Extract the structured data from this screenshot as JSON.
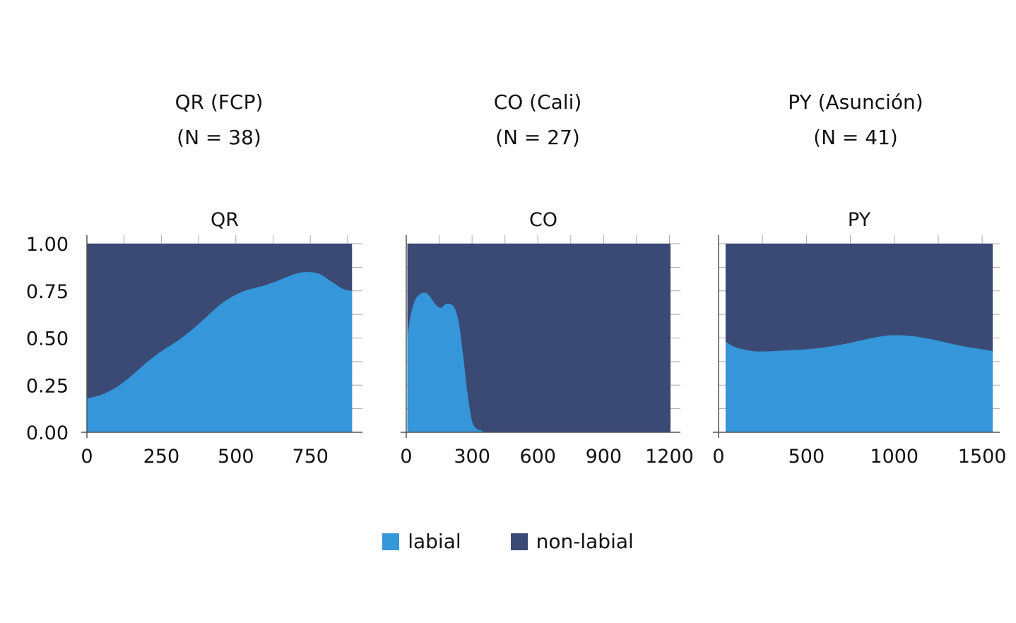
{
  "headers": [
    {
      "title": "QR (FCP)",
      "n": "(N = 38)"
    },
    {
      "title": "CO (Cali)",
      "n": "(N = 27)"
    },
    {
      "title": "PY (Asunción)",
      "n": "(N = 41)"
    }
  ],
  "legend": [
    {
      "label": "labial",
      "color": "#3596d9"
    },
    {
      "label": "non-labial",
      "color": "#3a4a75"
    }
  ],
  "colors": {
    "labial": "#3596d9",
    "non_labial": "#3a4a75",
    "axis": "#555555",
    "grid": "#aaaaaa"
  },
  "chart_data": [
    {
      "type": "area",
      "title": "QR",
      "stacked": "proportion",
      "xlim": [
        0,
        925
      ],
      "ylim": [
        0,
        1
      ],
      "xticks": [
        0,
        250,
        500,
        750
      ],
      "xtick_labels": [
        "0",
        "250",
        "500",
        "750"
      ],
      "yticks": [
        0,
        0.25,
        0.5,
        0.75,
        1
      ],
      "ytick_labels": [
        "0.00",
        "0.25",
        "0.50",
        "0.75",
        "1.00"
      ],
      "x_range": [
        0,
        890
      ],
      "series": [
        {
          "name": "labial",
          "x": [
            0,
            50,
            100,
            150,
            200,
            250,
            300,
            350,
            400,
            450,
            500,
            550,
            600,
            650,
            700,
            740,
            780,
            820,
            860,
            890
          ],
          "values": [
            0.18,
            0.2,
            0.24,
            0.3,
            0.37,
            0.43,
            0.48,
            0.54,
            0.61,
            0.68,
            0.73,
            0.76,
            0.78,
            0.81,
            0.84,
            0.85,
            0.84,
            0.8,
            0.76,
            0.75
          ]
        },
        {
          "name": "non-labial",
          "fill_to": 1
        }
      ]
    },
    {
      "type": "area",
      "title": "CO",
      "stacked": "proportion",
      "xlim": [
        0,
        1250
      ],
      "ylim": [
        0,
        1
      ],
      "xticks": [
        0,
        300,
        600,
        900,
        1200
      ],
      "xtick_labels": [
        "0",
        "300",
        "600",
        "900",
        "1200"
      ],
      "yticks": [
        0,
        0.25,
        0.5,
        0.75,
        1
      ],
      "ytick_labels": [
        "0.00",
        "0.25",
        "0.50",
        "0.75",
        "1.00"
      ],
      "x_range": [
        5,
        1205
      ],
      "series": [
        {
          "name": "labial",
          "x": [
            5,
            20,
            40,
            60,
            80,
            100,
            120,
            140,
            160,
            180,
            200,
            220,
            240,
            260,
            280,
            300,
            320,
            340,
            360,
            400,
            1205
          ],
          "values": [
            0.5,
            0.62,
            0.7,
            0.73,
            0.74,
            0.73,
            0.7,
            0.67,
            0.66,
            0.68,
            0.68,
            0.66,
            0.58,
            0.4,
            0.2,
            0.06,
            0.02,
            0.01,
            0.0,
            0.0,
            0.0
          ]
        },
        {
          "name": "non-labial",
          "fill_to": 1
        }
      ]
    },
    {
      "type": "area",
      "title": "PY",
      "stacked": "proportion",
      "xlim": [
        0,
        1600
      ],
      "ylim": [
        0,
        1
      ],
      "xticks": [
        0,
        500,
        1000,
        1500
      ],
      "xtick_labels": [
        "0",
        "500",
        "1000",
        "1500"
      ],
      "yticks": [
        0,
        0.25,
        0.5,
        0.75,
        1
      ],
      "ytick_labels": [
        "0.00",
        "0.25",
        "0.50",
        "0.75",
        "1.00"
      ],
      "x_range": [
        40,
        1560
      ],
      "series": [
        {
          "name": "labial",
          "x": [
            40,
            100,
            200,
            300,
            400,
            500,
            600,
            700,
            800,
            900,
            1000,
            1100,
            1200,
            1300,
            1400,
            1500,
            1560
          ],
          "values": [
            0.48,
            0.45,
            0.43,
            0.43,
            0.435,
            0.44,
            0.45,
            0.465,
            0.485,
            0.505,
            0.515,
            0.51,
            0.495,
            0.475,
            0.455,
            0.44,
            0.43
          ]
        },
        {
          "name": "non-labial",
          "fill_to": 1
        }
      ]
    }
  ]
}
